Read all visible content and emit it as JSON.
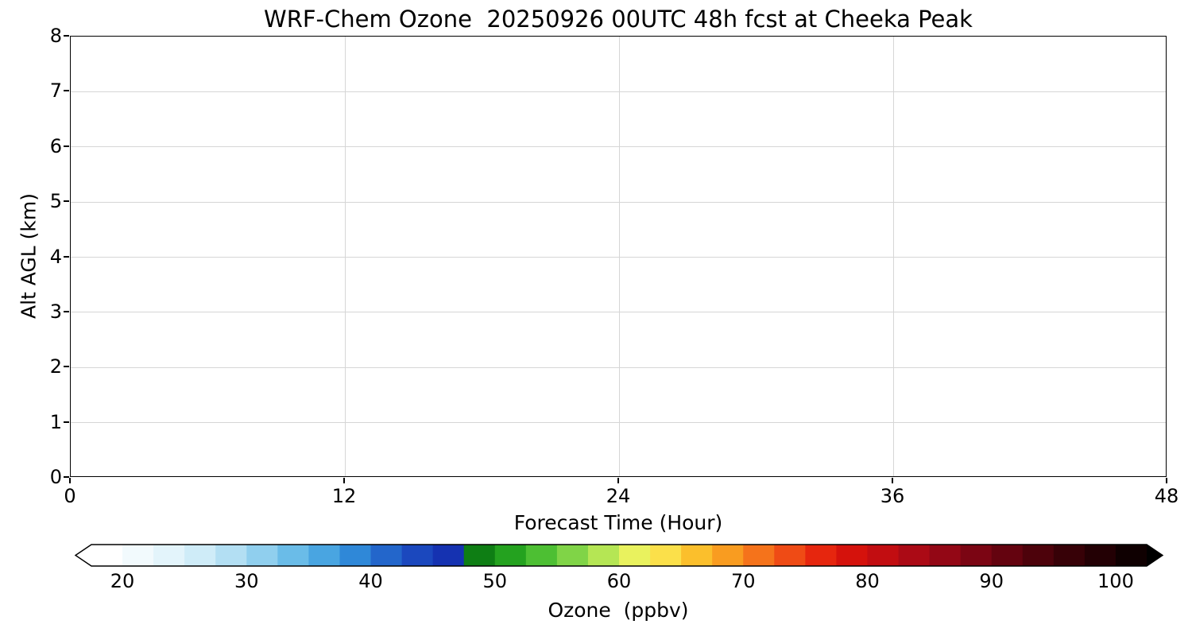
{
  "chart_data": {
    "type": "heatmap",
    "title": "WRF-Chem Ozone  20250926 00UTC 48h fcst at Cheeka Peak",
    "xlabel": "Forecast Time (Hour)",
    "ylabel": "Alt AGL (km)",
    "xlim": [
      0,
      48
    ],
    "x_ticks": [
      0,
      12,
      24,
      36,
      48
    ],
    "ylim": [
      0,
      8
    ],
    "y_ticks": [
      0,
      1,
      2,
      3,
      4,
      5,
      6,
      7,
      8
    ],
    "grid": true,
    "series": [],
    "colorbar": {
      "label": "Ozone  (ppbv)",
      "min": 17.5,
      "max": 102.5,
      "bin_width": 2.5,
      "ticks": [
        20,
        30,
        40,
        50,
        60,
        70,
        80,
        90,
        100
      ],
      "extend": "both",
      "extend_low_color": "#ffffff",
      "extend_high_color": "#000000",
      "outline_color": "#000000",
      "bin_colors": [
        "#ffffff",
        "#f2fafd",
        "#e3f4fb",
        "#cfecf8",
        "#b3dff3",
        "#90cfee",
        "#6abce8",
        "#49a5e1",
        "#2f88d8",
        "#2366cb",
        "#1b48be",
        "#1532b1",
        "#0e7e14",
        "#24a21f",
        "#4dbf33",
        "#80d447",
        "#b5e654",
        "#e9f25e",
        "#fbe04a",
        "#fbbf2c",
        "#f99c20",
        "#f5731b",
        "#ef4b15",
        "#e6260e",
        "#d5120c",
        "#c20d11",
        "#ab0a15",
        "#930715",
        "#7b0513",
        "#64030f",
        "#4d020b",
        "#370107",
        "#230004",
        "#0f0001"
      ]
    }
  }
}
